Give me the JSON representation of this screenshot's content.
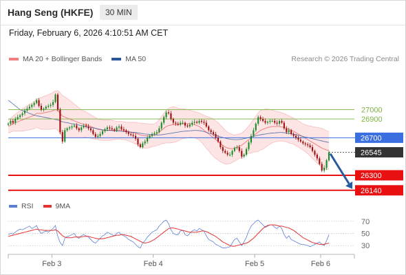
{
  "header": {
    "title": "Hang Seng (HKFE)",
    "timeframe": "30 MIN"
  },
  "subtitle": "Friday, February 6, 2026 4:10:51 AM CET",
  "legend": {
    "bollinger_label": "MA 20 + Bollinger Bands",
    "ma50_label": "MA 50",
    "credit": "Research © 2026 Trading Central"
  },
  "rsi_legend": {
    "rsi_label": "RSI",
    "ma_label": "9MA"
  },
  "colors": {
    "bollinger": "#f08080",
    "bollinger_fill": "#fde0e0",
    "ma50": "#2a5599",
    "resistance": "#7cb342",
    "pivot": "#3b6fe0",
    "support": "#e81010",
    "candle_up": "#1a8a2a",
    "candle_down": "#9e1010",
    "current": "#333333",
    "rsi": "#5b7fd6",
    "rsi_ma": "#e33333",
    "arrow": "#2a5a9e"
  },
  "chart_data": {
    "type": "line",
    "title": "Hang Seng (HKFE)",
    "interval": "30 MIN",
    "x_tick_labels": [
      "Feb 3",
      "Feb 4",
      "Feb 5",
      "Feb 6"
    ],
    "y_range": [
      26080,
      27450
    ],
    "levels": [
      {
        "label": "27000",
        "value": 27000,
        "kind": "resistance"
      },
      {
        "label": "26900",
        "value": 26900,
        "kind": "resistance"
      },
      {
        "label": "26700",
        "value": 26700,
        "kind": "pivot"
      },
      {
        "label": "26545",
        "value": 26545,
        "kind": "current"
      },
      {
        "label": "26300",
        "value": 26300,
        "kind": "support"
      },
      {
        "label": "26140",
        "value": 26140,
        "kind": "support"
      }
    ],
    "close_series": [
      26850,
      26880,
      26860,
      26900,
      26920,
      26940,
      26960,
      26990,
      27010,
      27030,
      27050,
      27070,
      27100,
      27040,
      27000,
      27010,
      27030,
      27040,
      27050,
      27080,
      27160,
      27000,
      26760,
      26660,
      26780,
      26800,
      26810,
      26820,
      26830,
      26800,
      26780,
      26810,
      26830,
      26820,
      26800,
      26780,
      26740,
      26710,
      26720,
      26740,
      26770,
      26790,
      26810,
      26800,
      26790,
      26780,
      26810,
      26820,
      26790,
      26780,
      26760,
      26740,
      26730,
      26720,
      26690,
      26630,
      26600,
      26640,
      26660,
      26700,
      26720,
      26740,
      26750,
      26760,
      26800,
      26860,
      26920,
      26970,
      26960,
      26900,
      26860,
      26850,
      26840,
      26860,
      26860,
      26830,
      26820,
      26840,
      26860,
      26870,
      26860,
      26880,
      26870,
      26860,
      26820,
      26780,
      26760,
      26740,
      26700,
      26660,
      26600,
      26560,
      26540,
      26520,
      26520,
      26560,
      26590,
      26600,
      26560,
      26500,
      26520,
      26580,
      26650,
      26720,
      26780,
      26850,
      26920,
      26900,
      26880,
      26860,
      26870,
      26880,
      26880,
      26860,
      26850,
      26880,
      26860,
      26800,
      26760,
      26780,
      26740,
      26720,
      26700,
      26680,
      26660,
      26640,
      26630,
      26620,
      26600,
      26560,
      26520,
      26480,
      26420,
      26350,
      26380,
      26460,
      26545
    ],
    "ma20_series": [
      26820,
      26835,
      26850,
      26860,
      26870,
      26880,
      26890,
      26900,
      26910,
      26920,
      26930,
      26940,
      26960,
      26960,
      26960,
      26965,
      26970,
      26975,
      26980,
      26990,
      27000,
      26990,
      26960,
      26930,
      26920,
      26910,
      26900,
      26890,
      26880,
      26870,
      26860,
      26850,
      26845,
      26840,
      26830,
      26820,
      26810,
      26800,
      26790,
      26785,
      26780,
      26780,
      26780,
      26780,
      26780,
      26780,
      26780,
      26780,
      26780,
      26775,
      26770,
      26765,
      26760,
      26755,
      26750,
      26740,
      26730,
      26725,
      26720,
      26720,
      26720,
      26725,
      26730,
      26740,
      26760,
      26780,
      26800,
      26820,
      26830,
      26835,
      26840,
      26840,
      26840,
      26845,
      26850,
      26850,
      26850,
      26850,
      26845,
      26840,
      26830,
      26820,
      26800,
      26780,
      26760,
      26740,
      26720,
      26700,
      26680,
      26660,
      26640,
      26620,
      26600,
      26590,
      26585,
      26585,
      26590,
      26600,
      26610,
      26620,
      26640,
      26660,
      26680,
      26700,
      26720,
      26740,
      26760,
      26780,
      26790,
      26800,
      26810,
      26815,
      26820,
      26820,
      26820,
      26820,
      26815,
      26810,
      26800,
      26790,
      26780,
      26770,
      26755,
      26740,
      26725,
      26710,
      26695,
      26680,
      26665,
      26650,
      26635,
      26620,
      26605,
      26590,
      26580,
      26570,
      26565
    ],
    "bb_width_series": [
      70,
      75,
      80,
      90,
      100,
      110,
      120,
      125,
      130,
      135,
      140,
      145,
      150,
      160,
      170,
      175,
      180,
      185,
      190,
      195,
      200,
      210,
      220,
      220,
      215,
      210,
      200,
      190,
      180,
      170,
      160,
      150,
      140,
      135,
      130,
      125,
      120,
      115,
      110,
      110,
      110,
      110,
      110,
      110,
      105,
      100,
      95,
      95,
      95,
      95,
      95,
      100,
      105,
      110,
      115,
      120,
      125,
      130,
      130,
      130,
      125,
      120,
      120,
      125,
      135,
      145,
      160,
      175,
      185,
      190,
      190,
      185,
      175,
      165,
      160,
      155,
      150,
      145,
      140,
      140,
      140,
      145,
      150,
      160,
      170,
      180,
      190,
      200,
      200,
      200,
      195,
      190,
      180,
      170,
      160,
      150,
      140,
      135,
      130,
      130,
      130,
      135,
      145,
      160,
      175,
      190,
      205,
      210,
      210,
      205,
      195,
      185,
      175,
      165,
      160,
      155,
      150,
      148,
      145,
      145,
      140,
      140,
      140,
      140,
      140,
      140,
      145,
      150,
      160,
      170,
      180,
      190,
      200,
      210,
      210,
      205,
      200
    ],
    "ma50_series": [
      27100,
      27080,
      27060,
      27040,
      27020,
      27000,
      26990,
      26980,
      26970,
      26960,
      26950,
      26940,
      26935,
      26930,
      26925,
      26920,
      26915,
      26910,
      26905,
      26900,
      26895,
      26890,
      26880,
      26870,
      26865,
      26860,
      26855,
      26850,
      26845,
      26840,
      26835,
      26830,
      26825,
      26820,
      26815,
      26810,
      26805,
      26800,
      26795,
      26790,
      26785,
      26782,
      26780,
      26778,
      26776,
      26774,
      26772,
      26770,
      26768,
      26766,
      26764,
      26762,
      26760,
      26758,
      26756,
      26752,
      26748,
      26744,
      26740,
      26738,
      26736,
      26734,
      26732,
      26730,
      26730,
      26732,
      26736,
      26740,
      26744,
      26748,
      26752,
      26756,
      26760,
      26764,
      26768,
      26770,
      26772,
      26774,
      26776,
      26778,
      26778,
      26776,
      26772,
      26766,
      26758,
      26750,
      26742,
      26734,
      26726,
      26718,
      26710,
      26702,
      26696,
      26690,
      26686,
      26682,
      26680,
      26680,
      26682,
      26686,
      26690,
      26696,
      26702,
      26708,
      26714,
      26720,
      26726,
      26732,
      26736,
      26740,
      26744,
      26748,
      26750,
      26752,
      26754,
      26756,
      26756,
      26754,
      26750,
      26746,
      26742,
      26738,
      26732,
      26726,
      26720,
      26714,
      26708,
      26702,
      26696,
      26690,
      26684,
      26678,
      26672,
      26666,
      26660,
      26655,
      26650
    ],
    "rsi": {
      "tick_labels": [
        "70",
        "50",
        "30"
      ],
      "y_range": [
        20,
        80
      ],
      "rsi_series": [
        48,
        50,
        49,
        52,
        55,
        57,
        56,
        58,
        60,
        62,
        58,
        60,
        63,
        55,
        50,
        52,
        54,
        52,
        55,
        58,
        63,
        45,
        35,
        30,
        42,
        45,
        46,
        48,
        50,
        44,
        42,
        46,
        48,
        46,
        44,
        40,
        36,
        34,
        38,
        42,
        46,
        48,
        52,
        50,
        48,
        46,
        50,
        52,
        48,
        46,
        44,
        40,
        38,
        36,
        32,
        28,
        26,
        34,
        38,
        44,
        48,
        52,
        54,
        56,
        62,
        66,
        70,
        72,
        66,
        56,
        50,
        48,
        48,
        54,
        55,
        48,
        46,
        50,
        54,
        56,
        54,
        58,
        56,
        54,
        46,
        40,
        38,
        36,
        32,
        30,
        28,
        26,
        26,
        27,
        28,
        34,
        40,
        42,
        36,
        30,
        36,
        44,
        54,
        62,
        66,
        70,
        72,
        68,
        64,
        60,
        62,
        64,
        64,
        60,
        58,
        62,
        58,
        48,
        42,
        46,
        40,
        38,
        36,
        34,
        32,
        32,
        31,
        30,
        28,
        30,
        32,
        34,
        36,
        32,
        30,
        38,
        48
      ],
      "ma_series": [
        45,
        46,
        47,
        48,
        49,
        50,
        51,
        52,
        53,
        54,
        55,
        56,
        57,
        56,
        56,
        55,
        55,
        55,
        55,
        55,
        56,
        54,
        50,
        46,
        44,
        43,
        43,
        43,
        44,
        44,
        44,
        44,
        45,
        45,
        45,
        44,
        43,
        42,
        41,
        41,
        41,
        42,
        43,
        44,
        45,
        46,
        47,
        47,
        48,
        48,
        47,
        46,
        45,
        43,
        41,
        39,
        37,
        35,
        34,
        35,
        36,
        38,
        40,
        43,
        46,
        49,
        52,
        55,
        58,
        59,
        59,
        58,
        57,
        56,
        55,
        54,
        53,
        52,
        52,
        52,
        52,
        53,
        54,
        54,
        53,
        51,
        49,
        47,
        45,
        42,
        39,
        36,
        34,
        32,
        30,
        29,
        29,
        30,
        31,
        32,
        33,
        34,
        36,
        39,
        42,
        46,
        50,
        54,
        58,
        61,
        63,
        64,
        64,
        64,
        63,
        62,
        62,
        61,
        60,
        59,
        57,
        55,
        52,
        49,
        46,
        43,
        41,
        39,
        37,
        35,
        34,
        33,
        32,
        32,
        32,
        33,
        34
      ]
    }
  }
}
